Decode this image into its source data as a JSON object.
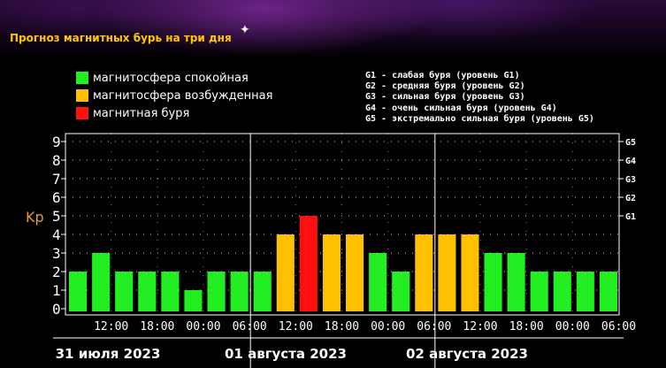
{
  "header": {
    "title": "Прогноз магнитных бурь на три дня"
  },
  "legend": [
    {
      "label": "магнитосфера спокойная",
      "color": "#22ee22"
    },
    {
      "label": "магнитосфера возбужденная",
      "color": "#ffc000"
    },
    {
      "label": "магнитная буря",
      "color": "#ff1010"
    }
  ],
  "g_legend": [
    "G1 - слабая буря (уровень G1)",
    "G2 - средняя буря (уровень G2)",
    "G3 - сильная буря (уровень G3)",
    "G4 - очень сильная буря (уровень G4)",
    "G5 - экстремально сильная буря (уровень G5)"
  ],
  "chart_data": {
    "type": "bar",
    "ylabel": "Kp",
    "ylim": [
      0,
      9
    ],
    "yticks": [
      "0",
      "1",
      "2",
      "3",
      "4",
      "5",
      "6",
      "7",
      "8",
      "9"
    ],
    "right_labels": [
      {
        "value": 5,
        "label": "G1"
      },
      {
        "value": 6,
        "label": "G2"
      },
      {
        "value": 7,
        "label": "G3"
      },
      {
        "value": 8,
        "label": "G4"
      },
      {
        "value": 9,
        "label": "G5"
      }
    ],
    "x_tick_labels": [
      "12:00",
      "18:00",
      "00:00",
      "06:00",
      "12:00",
      "18:00",
      "00:00",
      "06:00",
      "12:00",
      "18:00",
      "00:00",
      "06:00"
    ],
    "day_labels": [
      "31 июля 2023",
      "01 августа 2023",
      "02 августа 2023"
    ],
    "values": [
      2,
      3,
      2,
      2,
      2,
      1,
      2,
      2,
      2,
      4,
      5,
      4,
      4,
      3,
      2,
      4,
      4,
      4,
      3,
      3,
      2,
      2,
      2,
      2
    ],
    "colors": {
      "quiet": "#22ee22",
      "active": "#ffc000",
      "storm": "#ff1010"
    },
    "grid": true
  }
}
